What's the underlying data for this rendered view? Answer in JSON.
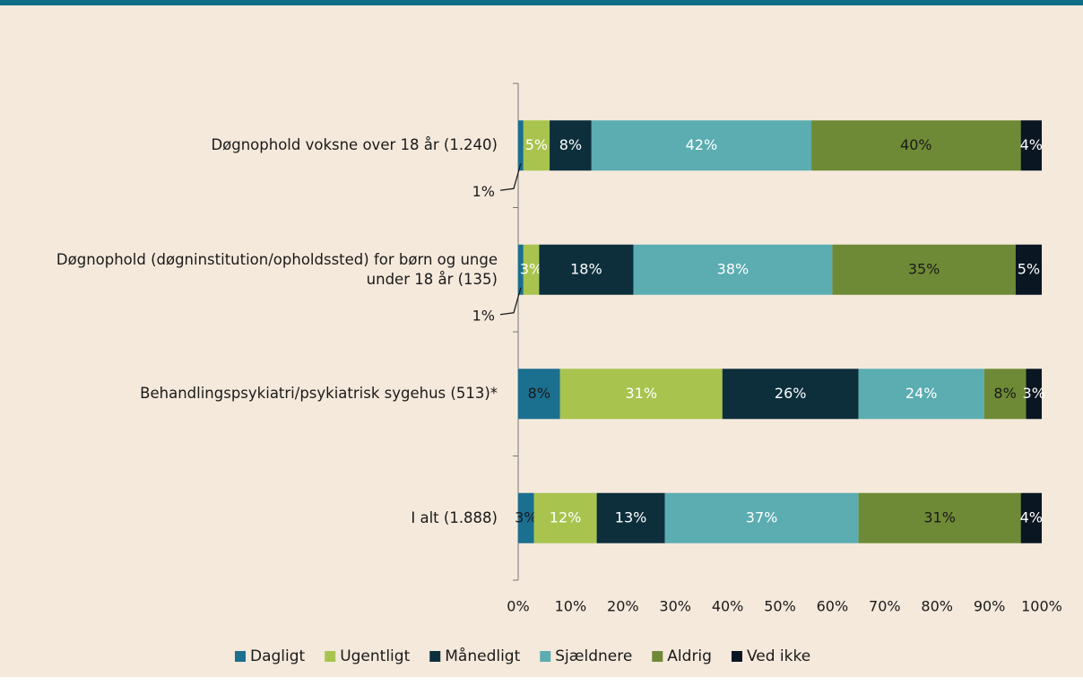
{
  "chart_data": {
    "type": "stacked-barh",
    "categories": [
      "Døgnophold voksne over 18 år (1.240)",
      "Døgnophold (døgninstitution/opholdssted) for børn og unge under 18 år (135)",
      "Behandlingspsykiatri/psykiatrisk sygehus (513)*",
      "I alt (1.888)"
    ],
    "series": [
      {
        "name": "Dagligt",
        "color": "#1b6f8f",
        "label_color": "#1a1a1a",
        "values": [
          1,
          1,
          8,
          3
        ],
        "value_labels": [
          "1%",
          "1%",
          "8%",
          "3%"
        ]
      },
      {
        "name": "Ugentligt",
        "color": "#a8c44f",
        "label_color": "#ffffff",
        "values": [
          5,
          3,
          31,
          12
        ],
        "value_labels": [
          "5%",
          "3%",
          "31%",
          "12%"
        ]
      },
      {
        "name": "Månedligt",
        "color": "#0d2f3c",
        "label_color": "#ffffff",
        "values": [
          8,
          18,
          26,
          13
        ],
        "value_labels": [
          "8%",
          "18%",
          "26%",
          "13%"
        ]
      },
      {
        "name": "Sjældnere",
        "color": "#5badb1",
        "label_color": "#ffffff",
        "values": [
          42,
          38,
          24,
          37
        ],
        "value_labels": [
          "42%",
          "38%",
          "24%",
          "37%"
        ]
      },
      {
        "name": "Aldrig",
        "color": "#6f8a36",
        "label_color": "#1a1a1a",
        "values": [
          40,
          35,
          8,
          31
        ],
        "value_labels": [
          "40%",
          "35%",
          "8%",
          "31%"
        ]
      },
      {
        "name": "Ved ikke",
        "color": "#0a1621",
        "label_color": "#ffffff",
        "values": [
          4,
          5,
          3,
          4
        ],
        "value_labels": [
          "4%",
          "5%",
          "3%",
          "4%"
        ]
      }
    ],
    "xlim": [
      0,
      100
    ],
    "xticks": [
      {
        "value": 0,
        "label": "0%"
      },
      {
        "value": 10,
        "label": "10%"
      },
      {
        "value": 20,
        "label": "20%"
      },
      {
        "value": 30,
        "label": "30%"
      },
      {
        "value": 40,
        "label": "40%"
      },
      {
        "value": 50,
        "label": "50%"
      },
      {
        "value": 60,
        "label": "60%"
      },
      {
        "value": 70,
        "label": "70%"
      },
      {
        "value": 80,
        "label": "80%"
      },
      {
        "value": 90,
        "label": "90%"
      },
      {
        "value": 100,
        "label": "100%"
      }
    ],
    "legend": "bottom"
  }
}
